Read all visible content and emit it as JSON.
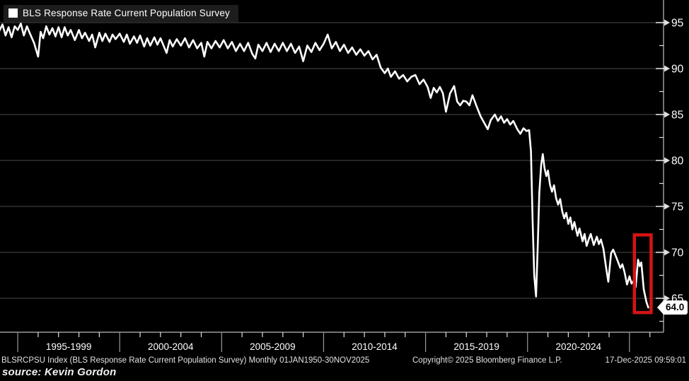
{
  "legend": {
    "label": "BLS Response Rate Current Population Survey"
  },
  "last_value_badge": {
    "value": "64.0"
  },
  "footer": {
    "ticker_line": "BLSRCPSU Index (BLS Response Rate Current Population Survey) Monthly 01JAN1950-30NOV2025",
    "copyright": "Copyright© 2025 Bloomberg Finance L.P.",
    "timestamp": "17-Dec-2025 09:59:01",
    "source": "source: Kevin Gordon"
  },
  "colors": {
    "background": "#000000",
    "line": "#ffffff",
    "grid": "#4a4a4a",
    "axis": "#9a9a9a",
    "tick": "#e0e0e0",
    "text": "#ffffff",
    "highlight": "#d41414",
    "legend_bg": "#1d1d1d"
  },
  "chart_data": {
    "type": "line",
    "title": "BLS Response Rate Current Population Survey",
    "xlabel": "",
    "ylabel": "",
    "grid": "horizontal",
    "legend_position": "top-left",
    "y_axis_side": "right",
    "xlim": [
      1994.13,
      2026.67
    ],
    "ylim": [
      61.31,
      97.46
    ],
    "y_ticks": [
      95,
      90,
      85,
      80,
      75,
      70,
      65
    ],
    "y_minor_ticks": [
      92.5,
      87.5,
      82.5,
      77.5,
      72.5,
      67.5,
      62.5
    ],
    "x_separator_years": [
      1995,
      2000,
      2005,
      2010,
      2015,
      2020,
      2025
    ],
    "x_minor_tick_years": [
      1996,
      1997,
      1998,
      1999,
      2001,
      2002,
      2003,
      2004,
      2006,
      2007,
      2008,
      2009,
      2011,
      2012,
      2013,
      2014,
      2016,
      2017,
      2018,
      2019,
      2021,
      2022,
      2023,
      2024,
      2026
    ],
    "x_group_labels": [
      {
        "label": "1995-1999",
        "start": 1995,
        "end": 2000
      },
      {
        "label": "2000-2004",
        "start": 2000,
        "end": 2005
      },
      {
        "label": "2005-2009",
        "start": 2005,
        "end": 2010
      },
      {
        "label": "2010-2014",
        "start": 2010,
        "end": 2015
      },
      {
        "label": "2015-2019",
        "start": 2015,
        "end": 2020
      },
      {
        "label": "2020-2024",
        "start": 2020,
        "end": 2025
      }
    ],
    "highlight_box": {
      "x0": 2025.24,
      "x1": 2026.06,
      "y0": 63.45,
      "y1": 71.9
    },
    "last_value": 64.0,
    "series": [
      {
        "name": "BLS Response Rate Current Population Survey",
        "points": [
          [
            1994.1,
            94.1
          ],
          [
            1994.25,
            94.8
          ],
          [
            1994.4,
            93.6
          ],
          [
            1994.55,
            94.5
          ],
          [
            1994.7,
            93.4
          ],
          [
            1994.85,
            94.6
          ],
          [
            1995.0,
            94.2
          ],
          [
            1995.15,
            94.9
          ],
          [
            1995.3,
            93.6
          ],
          [
            1995.45,
            94.6
          ],
          [
            1995.6,
            93.8
          ],
          [
            1995.8,
            92.8
          ],
          [
            1996.0,
            91.3
          ],
          [
            1996.12,
            94.0
          ],
          [
            1996.25,
            93.3
          ],
          [
            1996.4,
            94.6
          ],
          [
            1996.55,
            93.7
          ],
          [
            1996.7,
            94.4
          ],
          [
            1996.85,
            93.5
          ],
          [
            1997.0,
            94.5
          ],
          [
            1997.15,
            93.4
          ],
          [
            1997.3,
            94.5
          ],
          [
            1997.45,
            93.6
          ],
          [
            1997.6,
            94.2
          ],
          [
            1997.8,
            93.1
          ],
          [
            1998.0,
            94.2
          ],
          [
            1998.15,
            93.3
          ],
          [
            1998.3,
            93.9
          ],
          [
            1998.5,
            93.0
          ],
          [
            1998.65,
            93.7
          ],
          [
            1998.8,
            92.3
          ],
          [
            1999.0,
            93.9
          ],
          [
            1999.15,
            93.0
          ],
          [
            1999.3,
            93.8
          ],
          [
            1999.5,
            92.9
          ],
          [
            1999.65,
            93.7
          ],
          [
            1999.8,
            93.2
          ],
          [
            2000.0,
            93.8
          ],
          [
            2000.2,
            92.9
          ],
          [
            2000.35,
            93.7
          ],
          [
            2000.5,
            92.7
          ],
          [
            2000.7,
            93.5
          ],
          [
            2000.85,
            92.8
          ],
          [
            2001.0,
            93.6
          ],
          [
            2001.2,
            92.4
          ],
          [
            2001.35,
            93.3
          ],
          [
            2001.5,
            92.5
          ],
          [
            2001.7,
            93.4
          ],
          [
            2001.85,
            92.6
          ],
          [
            2002.0,
            93.3
          ],
          [
            2002.3,
            91.7
          ],
          [
            2002.45,
            93.1
          ],
          [
            2002.6,
            92.4
          ],
          [
            2002.8,
            93.2
          ],
          [
            2003.0,
            92.5
          ],
          [
            2003.2,
            93.3
          ],
          [
            2003.4,
            92.3
          ],
          [
            2003.6,
            93.1
          ],
          [
            2003.8,
            92.2
          ],
          [
            2004.0,
            92.8
          ],
          [
            2004.15,
            91.3
          ],
          [
            2004.3,
            92.9
          ],
          [
            2004.5,
            92.2
          ],
          [
            2004.7,
            93.0
          ],
          [
            2004.9,
            92.3
          ],
          [
            2005.1,
            93.1
          ],
          [
            2005.3,
            92.2
          ],
          [
            2005.5,
            92.9
          ],
          [
            2005.7,
            91.9
          ],
          [
            2005.9,
            92.7
          ],
          [
            2006.1,
            91.9
          ],
          [
            2006.3,
            92.8
          ],
          [
            2006.5,
            91.6
          ],
          [
            2006.65,
            91.1
          ],
          [
            2006.8,
            92.6
          ],
          [
            2007.0,
            91.9
          ],
          [
            2007.2,
            92.8
          ],
          [
            2007.4,
            91.8
          ],
          [
            2007.6,
            92.7
          ],
          [
            2007.8,
            91.9
          ],
          [
            2008.0,
            92.8
          ],
          [
            2008.2,
            91.9
          ],
          [
            2008.4,
            92.7
          ],
          [
            2008.6,
            91.7
          ],
          [
            2008.8,
            92.4
          ],
          [
            2009.0,
            90.8
          ],
          [
            2009.2,
            92.5
          ],
          [
            2009.4,
            91.8
          ],
          [
            2009.6,
            92.8
          ],
          [
            2009.8,
            92.0
          ],
          [
            2010.0,
            92.7
          ],
          [
            2010.2,
            93.7
          ],
          [
            2010.4,
            92.2
          ],
          [
            2010.6,
            92.9
          ],
          [
            2010.8,
            91.9
          ],
          [
            2011.0,
            92.6
          ],
          [
            2011.2,
            91.7
          ],
          [
            2011.4,
            92.3
          ],
          [
            2011.6,
            91.5
          ],
          [
            2011.8,
            92.1
          ],
          [
            2012.0,
            91.4
          ],
          [
            2012.2,
            91.9
          ],
          [
            2012.4,
            91.0
          ],
          [
            2012.6,
            91.5
          ],
          [
            2012.8,
            90.1
          ],
          [
            2013.0,
            89.5
          ],
          [
            2013.15,
            90.0
          ],
          [
            2013.3,
            89.1
          ],
          [
            2013.5,
            89.7
          ],
          [
            2013.7,
            88.9
          ],
          [
            2013.9,
            89.3
          ],
          [
            2014.1,
            88.6
          ],
          [
            2014.3,
            89.1
          ],
          [
            2014.5,
            89.3
          ],
          [
            2014.7,
            88.3
          ],
          [
            2014.9,
            88.8
          ],
          [
            2015.1,
            88.0
          ],
          [
            2015.25,
            86.8
          ],
          [
            2015.4,
            87.9
          ],
          [
            2015.55,
            87.4
          ],
          [
            2015.7,
            88.0
          ],
          [
            2015.85,
            87.3
          ],
          [
            2016.0,
            85.3
          ],
          [
            2016.2,
            87.3
          ],
          [
            2016.4,
            88.1
          ],
          [
            2016.55,
            86.4
          ],
          [
            2016.7,
            86.0
          ],
          [
            2016.85,
            86.5
          ],
          [
            2017.0,
            86.4
          ],
          [
            2017.15,
            86.0
          ],
          [
            2017.3,
            87.1
          ],
          [
            2017.5,
            85.9
          ],
          [
            2017.7,
            84.8
          ],
          [
            2017.9,
            84.0
          ],
          [
            2018.05,
            83.4
          ],
          [
            2018.2,
            84.4
          ],
          [
            2018.4,
            85.0
          ],
          [
            2018.55,
            84.3
          ],
          [
            2018.7,
            84.8
          ],
          [
            2018.85,
            84.1
          ],
          [
            2019.0,
            84.5
          ],
          [
            2019.15,
            83.9
          ],
          [
            2019.3,
            84.3
          ],
          [
            2019.5,
            83.4
          ],
          [
            2019.65,
            82.9
          ],
          [
            2019.8,
            83.5
          ],
          [
            2019.95,
            83.2
          ],
          [
            2020.08,
            83.3
          ],
          [
            2020.17,
            81.0
          ],
          [
            2020.25,
            73.5
          ],
          [
            2020.33,
            67.5
          ],
          [
            2020.42,
            65.2
          ],
          [
            2020.5,
            70.5
          ],
          [
            2020.58,
            76.5
          ],
          [
            2020.67,
            79.5
          ],
          [
            2020.75,
            80.7
          ],
          [
            2020.83,
            79.2
          ],
          [
            2020.92,
            78.3
          ],
          [
            2021.0,
            78.9
          ],
          [
            2021.1,
            77.4
          ],
          [
            2021.2,
            76.6
          ],
          [
            2021.3,
            77.3
          ],
          [
            2021.4,
            75.9
          ],
          [
            2021.5,
            75.2
          ],
          [
            2021.6,
            75.8
          ],
          [
            2021.7,
            74.5
          ],
          [
            2021.8,
            73.7
          ],
          [
            2021.9,
            74.3
          ],
          [
            2022.0,
            73.1
          ],
          [
            2022.1,
            73.8
          ],
          [
            2022.2,
            72.5
          ],
          [
            2022.3,
            73.3
          ],
          [
            2022.45,
            71.8
          ],
          [
            2022.55,
            72.6
          ],
          [
            2022.7,
            71.2
          ],
          [
            2022.8,
            72.0
          ],
          [
            2022.9,
            70.7
          ],
          [
            2023.0,
            71.4
          ],
          [
            2023.1,
            72.0
          ],
          [
            2023.25,
            70.8
          ],
          [
            2023.4,
            71.7
          ],
          [
            2023.5,
            70.9
          ],
          [
            2023.6,
            71.4
          ],
          [
            2023.72,
            70.4
          ],
          [
            2023.85,
            68.4
          ],
          [
            2023.96,
            66.8
          ],
          [
            2024.1,
            69.9
          ],
          [
            2024.2,
            70.3
          ],
          [
            2024.33,
            69.6
          ],
          [
            2024.45,
            68.9
          ],
          [
            2024.55,
            68.3
          ],
          [
            2024.65,
            68.7
          ],
          [
            2024.75,
            67.9
          ],
          [
            2024.88,
            66.5
          ],
          [
            2025.0,
            67.4
          ],
          [
            2025.1,
            66.6
          ],
          [
            2025.2,
            66.9
          ],
          [
            2025.3,
            66.2
          ],
          [
            2025.42,
            69.2
          ],
          [
            2025.5,
            68.5
          ],
          [
            2025.58,
            68.9
          ],
          [
            2025.7,
            66.0
          ],
          [
            2025.83,
            64.6
          ],
          [
            2025.92,
            64.0
          ]
        ]
      }
    ]
  }
}
